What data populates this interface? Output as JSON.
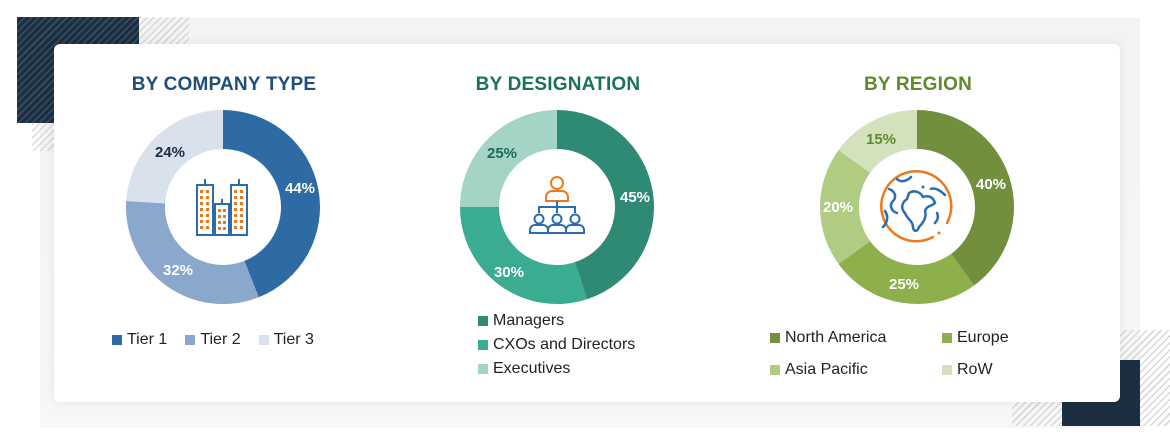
{
  "colors": {
    "company_title": "#1f4e79",
    "designation_title": "#1a7258",
    "region_title": "#5e8a2c",
    "tier1": "#2e6aa3",
    "tier2": "#8aa7cc",
    "tier3": "#d9e1ec",
    "managers": "#2e8a75",
    "cxos": "#3aac92",
    "executives": "#a4d4c5",
    "north_america": "#718f3c",
    "europe": "#8db04c",
    "asia_pacific": "#b0cc82",
    "row": "#d3e2bc",
    "icon_blue": "#2b6cb0",
    "icon_orange": "#ec7a1c"
  },
  "chart_data": [
    {
      "type": "pie",
      "variant": "donut",
      "title": "BY COMPANY TYPE",
      "categories": [
        "Tier 1",
        "Tier 2",
        "Tier 3"
      ],
      "values": [
        44,
        32,
        24
      ],
      "labels": [
        "44%",
        "32%",
        "24%"
      ],
      "legend_position": "bottom",
      "center_icon": "buildings-icon"
    },
    {
      "type": "pie",
      "variant": "donut",
      "title": "BY DESIGNATION",
      "categories": [
        "Managers",
        "CXOs and Directors",
        "Executives"
      ],
      "values": [
        45,
        30,
        25
      ],
      "labels": [
        "45%",
        "30%",
        "25%"
      ],
      "legend_position": "bottom",
      "center_icon": "org-hierarchy-icon"
    },
    {
      "type": "pie",
      "variant": "donut",
      "title": "BY REGION",
      "categories": [
        "North America",
        "Europe",
        "Asia Pacific",
        "RoW"
      ],
      "values": [
        40,
        25,
        20,
        15
      ],
      "labels": [
        "40%",
        "25%",
        "20%",
        "15%"
      ],
      "legend_position": "bottom",
      "center_icon": "globe-icon"
    }
  ],
  "panels": {
    "company": {
      "title": "BY COMPANY TYPE",
      "labels": [
        "44%",
        "32%",
        "24%"
      ],
      "legend": [
        "Tier 1",
        "Tier 2",
        "Tier 3"
      ]
    },
    "designation": {
      "title": "BY DESIGNATION",
      "labels": [
        "45%",
        "30%",
        "25%"
      ],
      "legend": [
        "Managers",
        "CXOs and Directors",
        "Executives"
      ]
    },
    "region": {
      "title": "BY REGION",
      "labels": [
        "40%",
        "25%",
        "20%",
        "15%"
      ],
      "legend": [
        "North America",
        "Europe",
        "Asia Pacific",
        "RoW"
      ]
    }
  }
}
